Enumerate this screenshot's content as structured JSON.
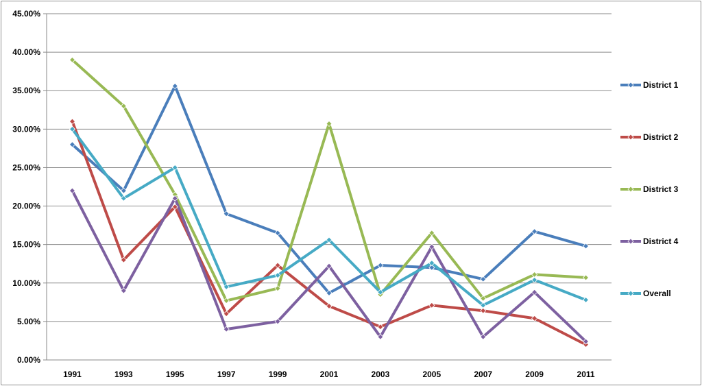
{
  "chart_data": {
    "type": "line",
    "title": "",
    "xlabel": "",
    "ylabel": "",
    "categories": [
      "1991",
      "1993",
      "1995",
      "1997",
      "1999",
      "2001",
      "2003",
      "2005",
      "2007",
      "2009",
      "2011"
    ],
    "ylim": [
      0,
      45
    ],
    "yticks": [
      0,
      5,
      10,
      15,
      20,
      25,
      30,
      35,
      40,
      45
    ],
    "ytick_labels": [
      "0.00%",
      "5.00%",
      "10.00%",
      "15.00%",
      "20.00%",
      "25.00%",
      "30.00%",
      "35.00%",
      "40.00%",
      "45.00%"
    ],
    "grid": true,
    "legend_position": "right",
    "series": [
      {
        "name": "District 1",
        "color": "#4a7ebb",
        "values": [
          28.0,
          22.0,
          35.6,
          19.0,
          16.5,
          8.7,
          12.3,
          12.0,
          10.5,
          16.7,
          14.8
        ]
      },
      {
        "name": "District 2",
        "color": "#be4b48",
        "values": [
          31.0,
          13.0,
          19.9,
          6.0,
          12.3,
          7.0,
          4.3,
          7.1,
          6.4,
          5.4,
          2.0
        ]
      },
      {
        "name": "District 3",
        "color": "#98b954",
        "values": [
          39.0,
          33.0,
          21.5,
          7.7,
          9.3,
          30.7,
          8.5,
          16.5,
          8.0,
          11.1,
          10.7
        ]
      },
      {
        "name": "District 4",
        "color": "#7d60a0",
        "values": [
          22.0,
          9.0,
          21.0,
          4.0,
          5.0,
          12.2,
          3.0,
          14.7,
          3.0,
          8.8,
          2.4
        ]
      },
      {
        "name": "Overall",
        "color": "#46aac5",
        "values": [
          30.0,
          21.0,
          25.0,
          9.5,
          11.0,
          15.6,
          8.8,
          12.6,
          7.1,
          10.4,
          7.8
        ]
      }
    ]
  }
}
